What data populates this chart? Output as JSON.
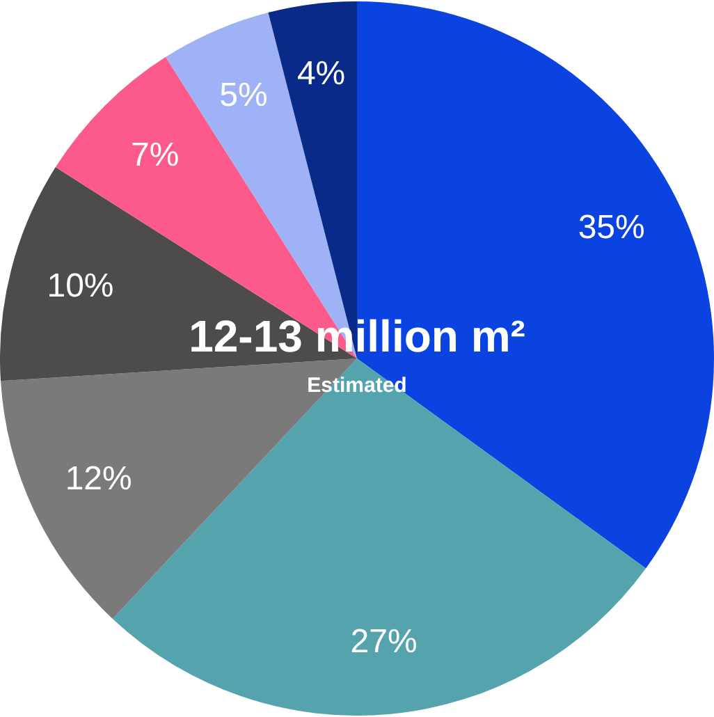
{
  "chart_data": {
    "type": "pie",
    "categories": [
      null,
      null,
      null,
      null,
      null,
      null,
      null
    ],
    "values": [
      35,
      27,
      12,
      10,
      7,
      5,
      4
    ],
    "colors": [
      "#0b43e0",
      "#54a3ad",
      "#7a7a7a",
      "#4d4c4a",
      "#fc5a8a",
      "#9fb2f5",
      "#0a2a8a"
    ],
    "value_labels": [
      "35%",
      "27%",
      "12%",
      "10%",
      "7%",
      "5%",
      "4%"
    ],
    "annotations": [
      "12-13 million m²",
      "Estimated"
    ],
    "legend": false
  }
}
